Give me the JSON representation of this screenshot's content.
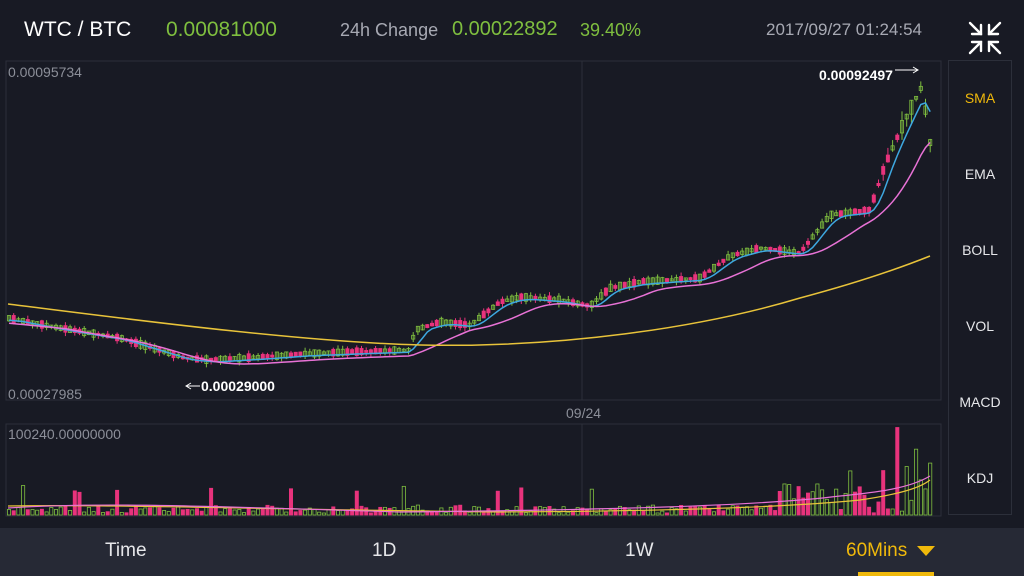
{
  "header": {
    "pair": "WTC / BTC",
    "price": "0.00081000",
    "change_label": "24h Change",
    "change_value": "0.00022892",
    "change_percent": "39.40%",
    "timestamp": "2017/09/27 01:24:54",
    "collapse_icon": "collapse-arrows-icon"
  },
  "chart": {
    "y_max_label": "0.00095734",
    "y_min_label": "0.00027985",
    "high_marker": "0.00092497",
    "low_marker": "0.00029000",
    "date_label": "09/24",
    "volume_max_label": "100240.00000000"
  },
  "chart_data": {
    "type": "candlestick",
    "x_label": "09/24",
    "y_range": [
      "0.00027985",
      "0.00095734"
    ],
    "high": "0.00092497",
    "low": "0.00029000",
    "indicators": [
      "SMA"
    ],
    "colors": {
      "up": "#7fbf3f",
      "down": "#e8337c",
      "line_short": "#3ea8e0",
      "line_mid": "#e872d6",
      "line_long": "#e8c33a"
    },
    "volume_max": "100240.00000000"
  },
  "side_menu": {
    "items": [
      {
        "label": "SMA",
        "active": true
      },
      {
        "label": "EMA",
        "active": false
      },
      {
        "label": "BOLL",
        "active": false
      },
      {
        "label": "VOL",
        "active": false
      },
      {
        "label": "MACD",
        "active": false
      },
      {
        "label": "KDJ",
        "active": false
      }
    ]
  },
  "tabs": {
    "items": [
      {
        "label": "Time"
      },
      {
        "label": "1D"
      },
      {
        "label": "1W"
      },
      {
        "label": "60Mins",
        "active": true
      }
    ]
  }
}
